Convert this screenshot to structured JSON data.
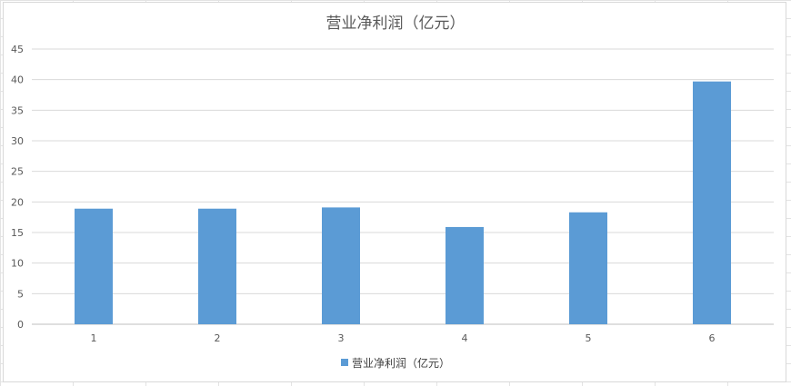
{
  "chart_data": {
    "type": "bar",
    "title": "营业净利润（亿元）",
    "categories": [
      "1",
      "2",
      "3",
      "4",
      "5",
      "6"
    ],
    "series": [
      {
        "name": "营业净利润（亿元）",
        "values": [
          18.9,
          18.9,
          19.1,
          15.9,
          18.3,
          39.7
        ],
        "color": "#5b9bd5"
      }
    ],
    "xlabel": "",
    "ylabel": "",
    "ylim": [
      0,
      45
    ],
    "yticks": [
      "0",
      "5",
      "10",
      "15",
      "20",
      "25",
      "30",
      "35",
      "40",
      "45"
    ],
    "grid": true,
    "legend_position": "bottom"
  }
}
